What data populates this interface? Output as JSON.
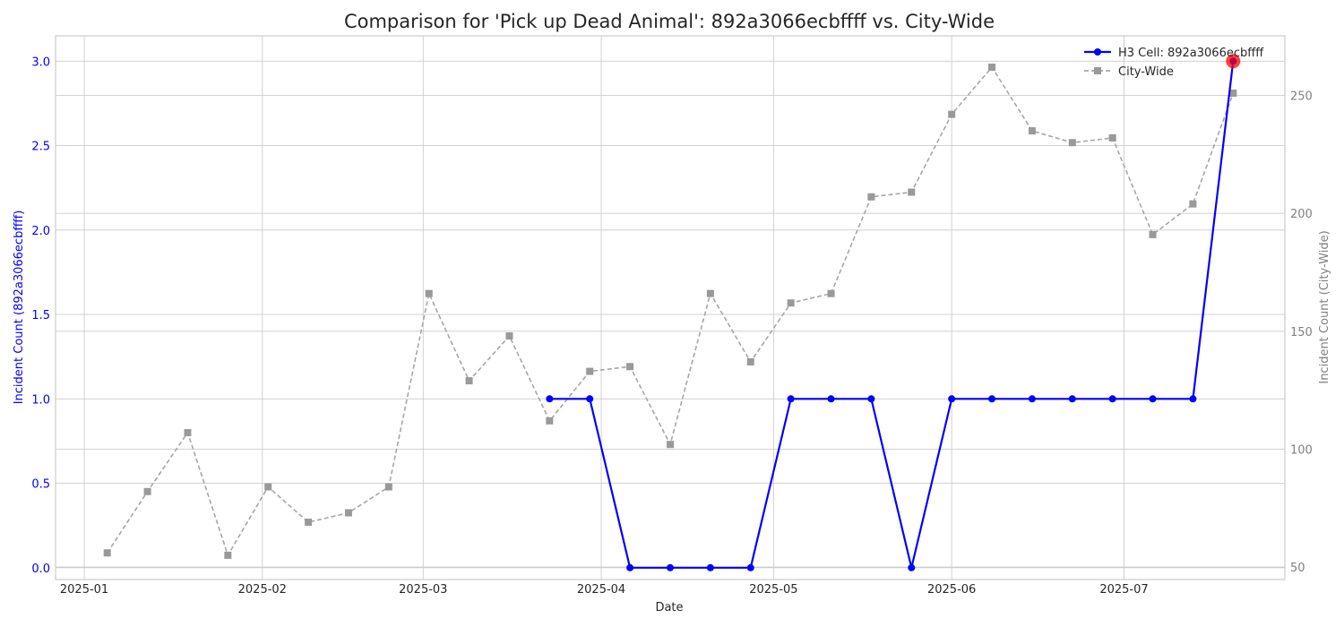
{
  "chart_data": {
    "type": "line",
    "title": "Comparison for 'Pick up Dead Animal': 892a3066ecbffff vs. City-Wide",
    "xlabel": "Date",
    "ylabel_left": "Incident Count (892a3066ecbffff)",
    "ylabel_right": "Incident Count (City-Wide)",
    "x_ticks": [
      "2025-01-01",
      "2025-02-01",
      "2025-03-01",
      "2025-04-01",
      "2025-05-01",
      "2025-06-01",
      "2025-07-01"
    ],
    "x_tick_labels": [
      "2025-01",
      "2025-02",
      "2025-03",
      "2025-04",
      "2025-05",
      "2025-06",
      "2025-07"
    ],
    "xlim": [
      "2024-12-27",
      "2025-07-29"
    ],
    "ylim_left": [
      -0.07,
      3.15
    ],
    "ylim_right": [
      44.7,
      275.3
    ],
    "yticks_left": [
      "0.0",
      "0.5",
      "1.0",
      "1.5",
      "2.0",
      "2.5",
      "3.0"
    ],
    "yticks_right": [
      "50",
      "100",
      "150",
      "200",
      "250"
    ],
    "grid": true,
    "legend_position": "top-right",
    "series": [
      {
        "name": "H3 Cell: 892a3066ecbffff",
        "axis": "left",
        "color": "#0000ff",
        "style": "solid",
        "marker": "circle",
        "x": [
          "2025-03-23",
          "2025-03-30",
          "2025-04-06",
          "2025-04-13",
          "2025-04-20",
          "2025-04-27",
          "2025-05-04",
          "2025-05-11",
          "2025-05-18",
          "2025-05-25",
          "2025-06-01",
          "2025-06-08",
          "2025-06-15",
          "2025-06-22",
          "2025-06-29",
          "2025-07-06",
          "2025-07-13",
          "2025-07-20"
        ],
        "values": [
          1,
          1,
          0,
          0,
          0,
          0,
          1,
          1,
          1,
          0,
          1,
          1,
          1,
          1,
          1,
          1,
          1,
          3
        ]
      },
      {
        "name": "City-Wide",
        "axis": "right",
        "color": "#808080",
        "style": "dashed",
        "marker": "square",
        "x": [
          "2025-01-05",
          "2025-01-12",
          "2025-01-19",
          "2025-01-26",
          "2025-02-02",
          "2025-02-09",
          "2025-02-16",
          "2025-02-23",
          "2025-03-02",
          "2025-03-09",
          "2025-03-16",
          "2025-03-23",
          "2025-03-30",
          "2025-04-06",
          "2025-04-13",
          "2025-04-20",
          "2025-04-27",
          "2025-05-04",
          "2025-05-11",
          "2025-05-18",
          "2025-05-25",
          "2025-06-01",
          "2025-06-08",
          "2025-06-15",
          "2025-06-22",
          "2025-06-29",
          "2025-07-06",
          "2025-07-13",
          "2025-07-20"
        ],
        "values": [
          56,
          82,
          107,
          55,
          84,
          69,
          73,
          84,
          166,
          129,
          148,
          112,
          133,
          135,
          102,
          166,
          137,
          162,
          166,
          207,
          209,
          242,
          262,
          235,
          230,
          232,
          191,
          204,
          251
        ]
      }
    ],
    "highlight": {
      "series": "H3 Cell: 892a3066ecbffff",
      "x": "2025-07-20",
      "value": 3,
      "color": "#ff0000"
    }
  }
}
